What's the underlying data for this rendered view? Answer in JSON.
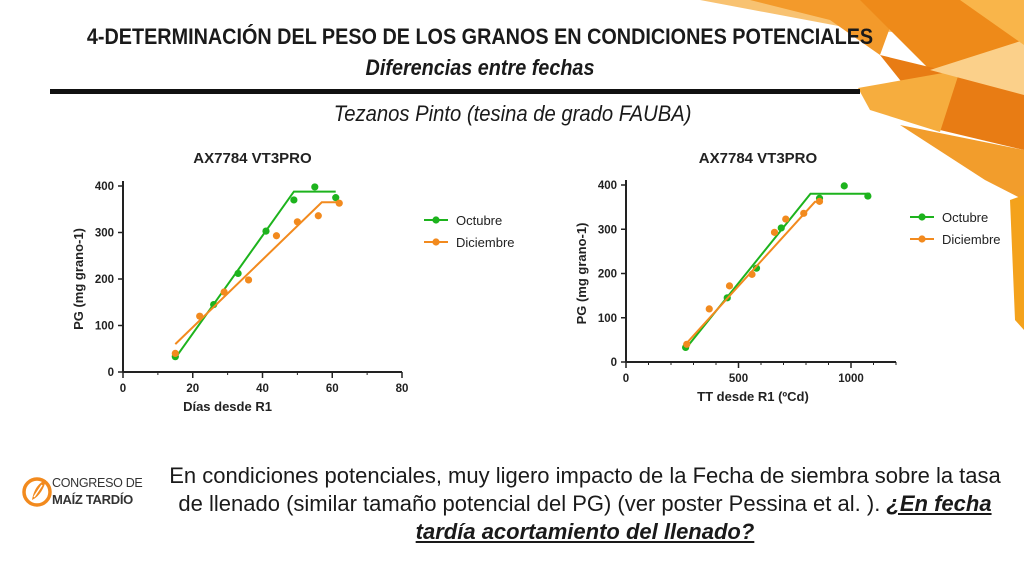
{
  "header": {
    "title": "4-DETERMINACIÓN DEL PESO DE LOS GRANOS EN CONDICIONES POTENCIALES",
    "subtitle": "Diferencias entre fechas",
    "author": "Tezanos Pinto (tesina de grado FAUBA)"
  },
  "colors": {
    "octubre": "#1db31d",
    "diciembre": "#f28a1e",
    "decoration": "#f4a21c"
  },
  "logo": {
    "line1": "CONGRESO DE",
    "line2": "MAÍZ TARDÍO"
  },
  "footer": {
    "text": "En condiciones potenciales, muy ligero impacto de la Fecha de siembra sobre la tasa de llenado (similar tamaño potencial del PG) (ver poster Pessina et al. ). ",
    "highlight": "¿En fecha tardía acortamiento del llenado?"
  },
  "chart_data": [
    {
      "type": "scatter",
      "title": "AX7784 VT3PRO",
      "xlabel": "Días desde R1",
      "ylabel": "PG (mg grano-1)",
      "xlim": [
        0,
        80
      ],
      "ylim": [
        0,
        400
      ],
      "xticks": [
        0,
        20,
        40,
        60,
        80
      ],
      "yticks": [
        0,
        100,
        200,
        300,
        400
      ],
      "legend": "right",
      "series": [
        {
          "name": "Octubre",
          "color": "#1db31d",
          "points": [
            [
              15,
              33
            ],
            [
              26,
              145
            ],
            [
              33,
              212
            ],
            [
              41,
              303
            ],
            [
              49,
              370
            ],
            [
              55,
              398
            ],
            [
              61,
              375
            ]
          ],
          "fit": [
            [
              15,
              30
            ],
            [
              49,
              388
            ],
            [
              61,
              388
            ]
          ]
        },
        {
          "name": "Diciembre",
          "color": "#f28a1e",
          "points": [
            [
              15,
              40
            ],
            [
              22,
              120
            ],
            [
              29,
              172
            ],
            [
              36,
              198
            ],
            [
              44,
              293
            ],
            [
              50,
              323
            ],
            [
              56,
              336
            ],
            [
              62,
              363
            ]
          ],
          "fit": [
            [
              15,
              60
            ],
            [
              57,
              365
            ],
            [
              62,
              365
            ]
          ]
        }
      ]
    },
    {
      "type": "scatter",
      "title": "AX7784 VT3PRO",
      "xlabel": "TT desde R1 (ºCd)",
      "ylabel": "PG (mg grano-1)",
      "xlim": [
        0,
        1200
      ],
      "ylim": [
        0,
        400
      ],
      "xticks": [
        0,
        500,
        1000
      ],
      "yticks": [
        0,
        100,
        200,
        300,
        400
      ],
      "legend": "right",
      "series": [
        {
          "name": "Octubre",
          "color": "#1db31d",
          "points": [
            [
              265,
              33
            ],
            [
              450,
              145
            ],
            [
              580,
              212
            ],
            [
              690,
              303
            ],
            [
              860,
              370
            ],
            [
              970,
              398
            ],
            [
              1075,
              375
            ]
          ],
          "fit": [
            [
              265,
              30
            ],
            [
              820,
              380
            ],
            [
              1085,
              380
            ]
          ]
        },
        {
          "name": "Diciembre",
          "color": "#f28a1e",
          "points": [
            [
              270,
              40
            ],
            [
              370,
              120
            ],
            [
              460,
              172
            ],
            [
              560,
              198
            ],
            [
              660,
              293
            ],
            [
              710,
              323
            ],
            [
              790,
              336
            ],
            [
              860,
              363
            ]
          ],
          "fit": [
            [
              265,
              40
            ],
            [
              840,
              362
            ],
            [
              870,
              362
            ]
          ]
        }
      ]
    }
  ]
}
